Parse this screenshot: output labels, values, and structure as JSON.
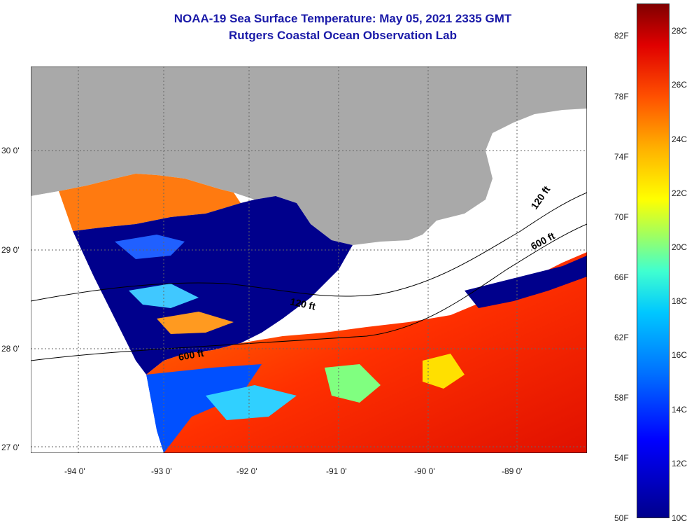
{
  "title_line1": "NOAA-19 Sea Surface Temperature:  May 05, 2021 2335 GMT",
  "title_line2": "Rutgers Coastal Ocean Observation Lab",
  "map": {
    "lat_labels": [
      "30 0'",
      "29 0'",
      "28 0'",
      "27 0'"
    ],
    "lon_labels": [
      "-94 0'",
      "-93 0'",
      "-92 0'",
      "-91 0'",
      "-90 0'",
      "-89 0'"
    ],
    "contour_labels": [
      "120 ft",
      "600 ft",
      "120 ft",
      "600 ft"
    ],
    "colors": {
      "land": "#a9a9a9",
      "no_data": "#ffffff",
      "cold": "#00008c",
      "warm": "#e82000"
    }
  },
  "colorbar": {
    "fahrenheit_labels": [
      "82F",
      "78F",
      "74F",
      "70F",
      "66F",
      "62F",
      "58F",
      "54F",
      "50F"
    ],
    "celsius_labels": [
      "28C",
      "26C",
      "24C",
      "22C",
      "20C",
      "18C",
      "16C",
      "14C",
      "12C",
      "10C"
    ]
  }
}
